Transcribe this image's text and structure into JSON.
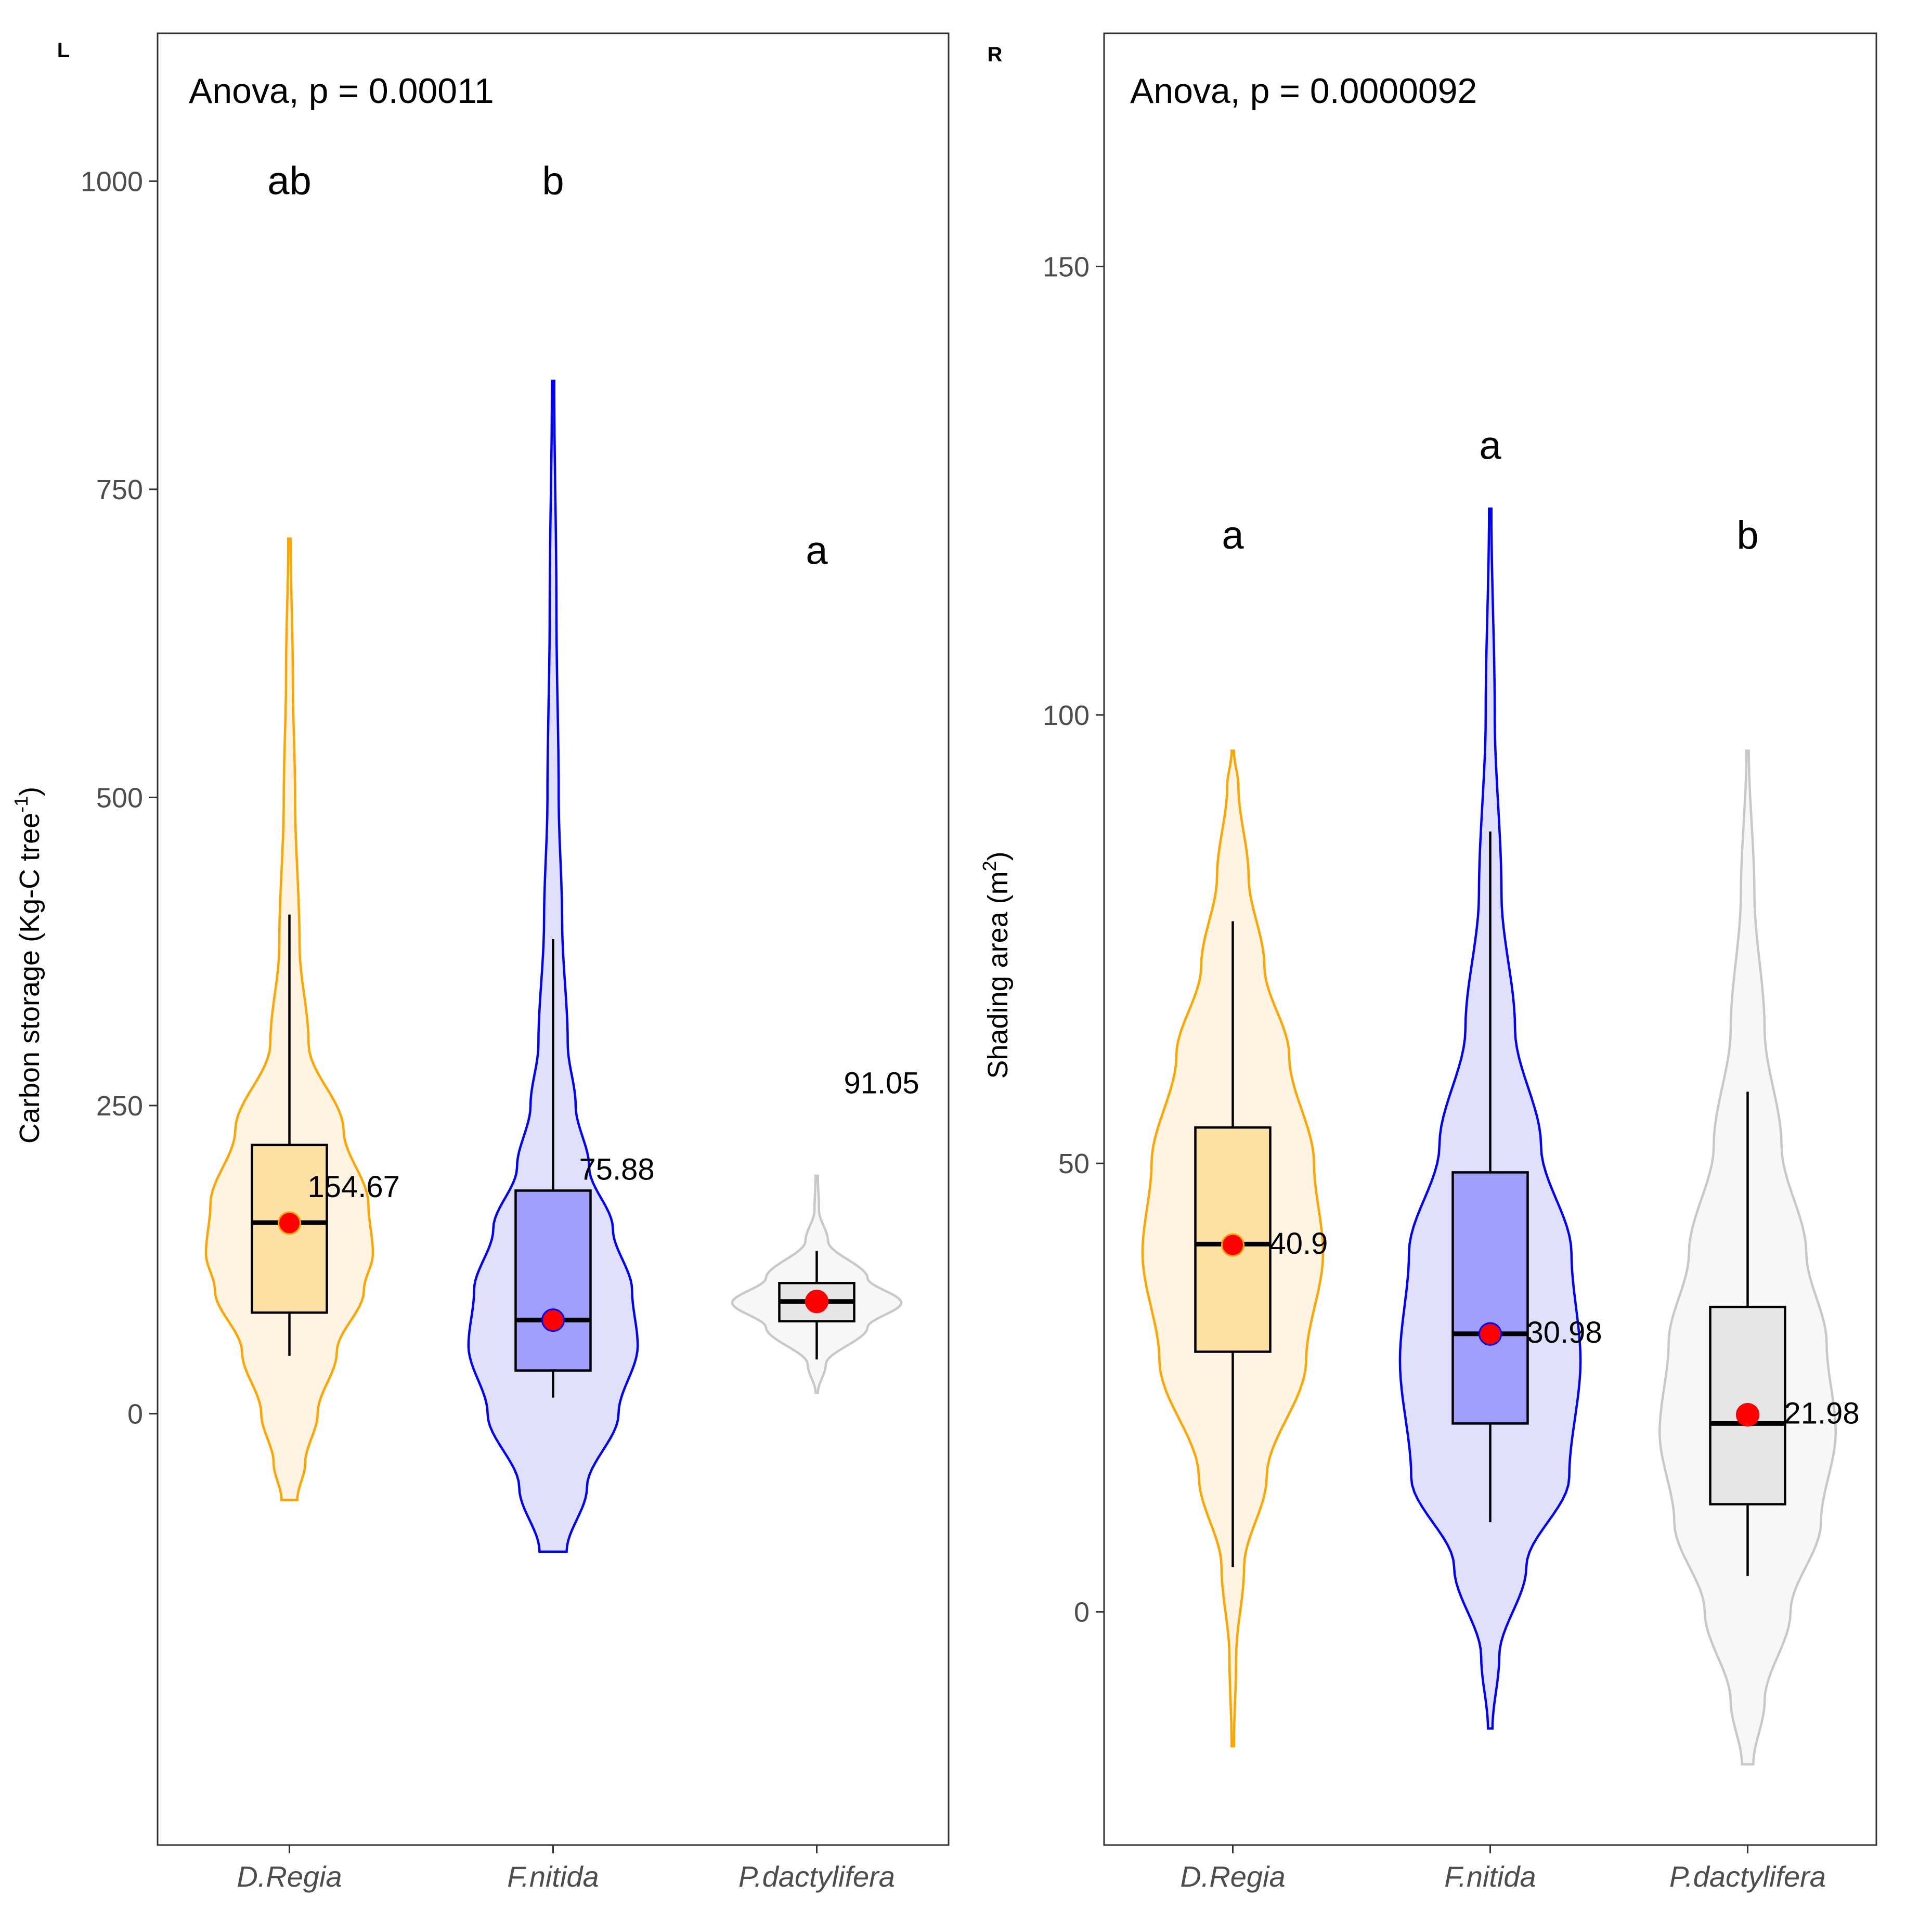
{
  "chart_data": [
    {
      "panel_tag": "L",
      "type": "violin",
      "title": "",
      "anova_label": "Anova, p = 0.00011",
      "xlabel": "",
      "ylabel": {
        "text": "Carbon storage (Kg-C tree",
        "superscript": "-1",
        "suffix": ")"
      },
      "ylim": [
        -350,
        1120
      ],
      "yticks": [
        0,
        250,
        500,
        750,
        1000
      ],
      "ytick_labels": [
        "0",
        "250",
        "500",
        "750",
        "1000"
      ],
      "grid": false,
      "categories": [
        "D.Regia",
        "F.nitida",
        "P.dactylifera"
      ],
      "groups": [
        {
          "name": "D.Regia",
          "color": "#FFA500",
          "fill": "#FFF4E2",
          "box_fill": "#FDE0A4",
          "violin_min": -70,
          "violin_max": 710,
          "violin_profile": [
            [
              -70,
              0.07
            ],
            [
              -40,
              0.14
            ],
            [
              0,
              0.25
            ],
            [
              50,
              0.42
            ],
            [
              100,
              0.66
            ],
            [
              130,
              0.74
            ],
            [
              170,
              0.7
            ],
            [
              230,
              0.48
            ],
            [
              300,
              0.17
            ],
            [
              380,
              0.09
            ],
            [
              500,
              0.05
            ],
            [
              600,
              0.03
            ],
            [
              710,
              0.01
            ]
          ],
          "q1": 82,
          "median": 155,
          "q3": 218,
          "whisker_low": 47,
          "whisker_high": 405,
          "mean": 154.67,
          "mean_label": "154.67",
          "letter": "ab",
          "letter_y": 1000
        },
        {
          "name": "F.nitida",
          "color": "#0000FF",
          "fill": "#E0E0FC",
          "box_fill": "#A0A0FC",
          "violin_min": -112,
          "violin_max": 838,
          "violin_profile": [
            [
              -112,
              0.12
            ],
            [
              -60,
              0.3
            ],
            [
              0,
              0.58
            ],
            [
              55,
              0.75
            ],
            [
              100,
              0.7
            ],
            [
              150,
              0.53
            ],
            [
              200,
              0.32
            ],
            [
              250,
              0.2
            ],
            [
              300,
              0.13
            ],
            [
              400,
              0.08
            ],
            [
              500,
              0.05
            ],
            [
              650,
              0.03
            ],
            [
              838,
              0.01
            ]
          ],
          "q1": 35,
          "median": 76,
          "q3": 181,
          "whisker_low": 13,
          "whisker_high": 385,
          "mean": 75.88,
          "mean_label": "75.88",
          "letter": "b",
          "letter_y": 1000
        },
        {
          "name": "P.dactylifera",
          "color": "#C8C8C8",
          "fill": "#F7F7F7",
          "box_fill": "#E6E6E6",
          "violin_min": 17,
          "violin_max": 193,
          "violin_profile": [
            [
              17,
              0.01
            ],
            [
              40,
              0.08
            ],
            [
              70,
              0.45
            ],
            [
              90,
              0.75
            ],
            [
              110,
              0.45
            ],
            [
              140,
              0.1
            ],
            [
              165,
              0.02
            ],
            [
              193,
              0.01
            ]
          ],
          "q1": 75,
          "median": 91,
          "q3": 106,
          "whisker_low": 44,
          "whisker_high": 132,
          "mean": 91.05,
          "mean_label": "91.05",
          "letter": "a",
          "letter_y": 700
        }
      ]
    },
    {
      "panel_tag": "R",
      "type": "violin",
      "title": "",
      "anova_label": "Anova, p = 0.0000092",
      "xlabel": "",
      "ylabel": {
        "text": "Shading area (m",
        "superscript": "2",
        "suffix": ")"
      },
      "ylim": [
        -26,
        176
      ],
      "yticks": [
        0,
        50,
        100,
        150
      ],
      "ytick_labels": [
        "0",
        "50",
        "100",
        "150"
      ],
      "grid": false,
      "categories": [
        "D.Regia",
        "F.nitida",
        "P.dactylifera"
      ],
      "groups": [
        {
          "name": "D.Regia",
          "color": "#FFA500",
          "fill": "#FFF4E2",
          "box_fill": "#FDE0A4",
          "violin_min": -15,
          "violin_max": 96,
          "violin_profile": [
            [
              -15,
              0.01
            ],
            [
              -5,
              0.03
            ],
            [
              5,
              0.1
            ],
            [
              15,
              0.3
            ],
            [
              28,
              0.65
            ],
            [
              40,
              0.8
            ],
            [
              50,
              0.72
            ],
            [
              62,
              0.5
            ],
            [
              72,
              0.28
            ],
            [
              82,
              0.14
            ],
            [
              92,
              0.05
            ],
            [
              96,
              0.01
            ]
          ],
          "q1": 29,
          "median": 41,
          "q3": 54,
          "whisker_low": 5,
          "whisker_high": 77,
          "mean": 40.9,
          "mean_label": "40.9",
          "letter": "a",
          "letter_y": 120
        },
        {
          "name": "F.nitida",
          "color": "#0000FF",
          "fill": "#E0E0FC",
          "box_fill": "#A0A0FC",
          "violin_min": -13,
          "violin_max": 123,
          "violin_profile": [
            [
              -13,
              0.02
            ],
            [
              -5,
              0.08
            ],
            [
              5,
              0.32
            ],
            [
              15,
              0.7
            ],
            [
              28,
              0.8
            ],
            [
              40,
              0.72
            ],
            [
              52,
              0.45
            ],
            [
              65,
              0.22
            ],
            [
              80,
              0.1
            ],
            [
              100,
              0.04
            ],
            [
              123,
              0.01
            ]
          ],
          "q1": 21,
          "median": 31,
          "q3": 49,
          "whisker_low": 10,
          "whisker_high": 87,
          "mean": 30.98,
          "mean_label": "30.98",
          "letter": "a",
          "letter_y": 130
        },
        {
          "name": "P.dactylifera",
          "color": "#C8C8C8",
          "fill": "#F7F7F7",
          "box_fill": "#E6E6E6",
          "violin_min": -17,
          "violin_max": 96,
          "violin_profile": [
            [
              -17,
              0.05
            ],
            [
              -10,
              0.15
            ],
            [
              0,
              0.38
            ],
            [
              10,
              0.65
            ],
            [
              20,
              0.78
            ],
            [
              30,
              0.7
            ],
            [
              40,
              0.52
            ],
            [
              52,
              0.3
            ],
            [
              65,
              0.15
            ],
            [
              80,
              0.06
            ],
            [
              96,
              0.01
            ]
          ],
          "q1": 12,
          "median": 21,
          "q3": 34,
          "whisker_low": 4,
          "whisker_high": 58,
          "mean": 21.98,
          "mean_label": "21.98",
          "letter": "b",
          "letter_y": 120
        }
      ]
    }
  ],
  "colors": {
    "mean_point_fill": "#FF0000",
    "axis": "#333333",
    "tick_text": "#4D4D4D",
    "text": "#000000"
  }
}
